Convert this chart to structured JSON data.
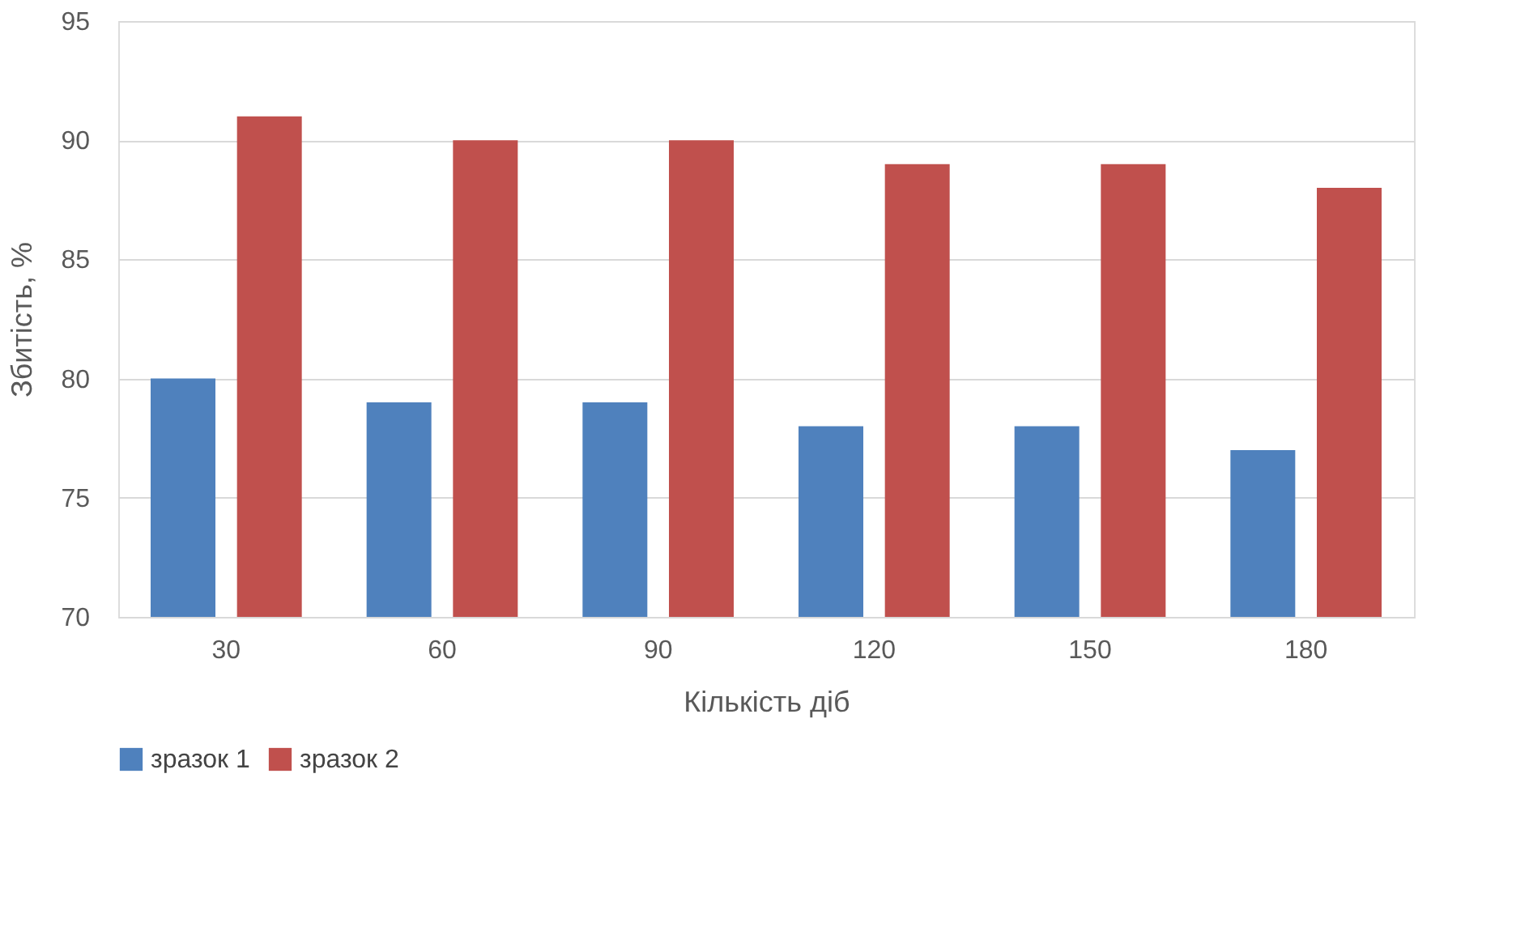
{
  "chart_data": {
    "type": "bar",
    "xlabel": "Кількість діб",
    "ylabel": "Збитість, %",
    "categories": [
      "30",
      "60",
      "90",
      "120",
      "150",
      "180"
    ],
    "series": [
      {
        "name": "зразок 1",
        "color": "#4f81bd",
        "values": [
          80,
          79,
          79,
          78,
          78,
          77
        ]
      },
      {
        "name": "зразок 2",
        "color": "#c0504d",
        "values": [
          91,
          90,
          90,
          89,
          89,
          88
        ]
      }
    ],
    "ylim": [
      70,
      95
    ],
    "yticks": [
      70,
      75,
      80,
      85,
      90,
      95
    ],
    "grid": "y",
    "legend": "bottom"
  }
}
